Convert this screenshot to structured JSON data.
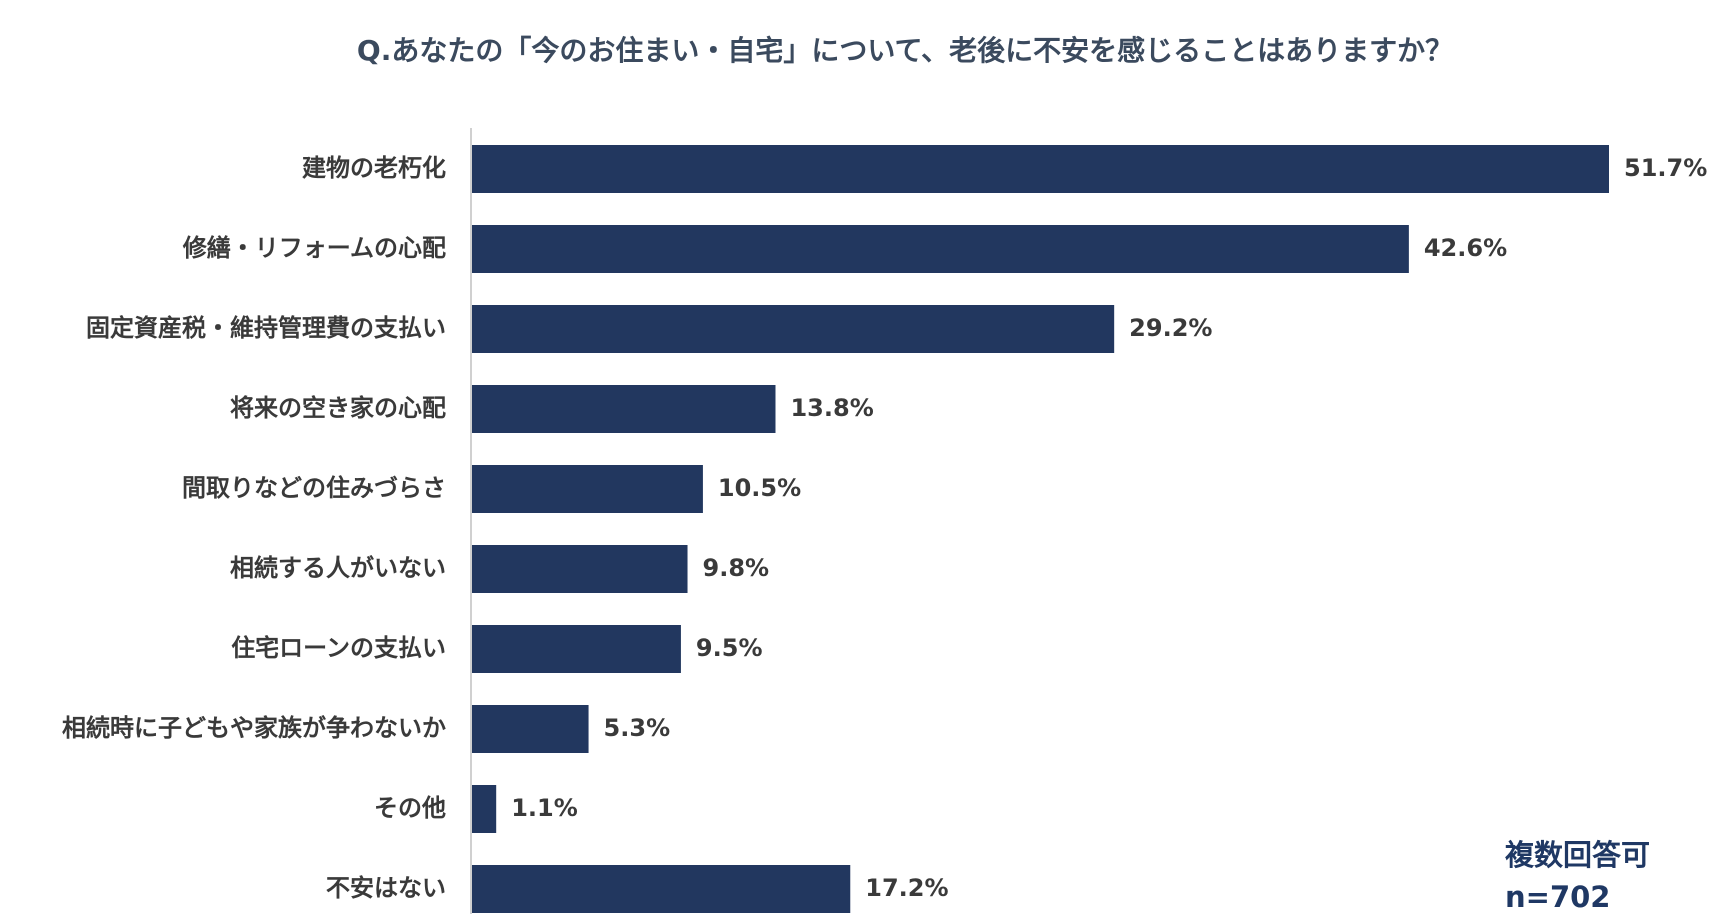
{
  "chart_data": {
    "type": "bar",
    "orientation": "horizontal",
    "title": "Q.あなたの「今のお住まい・自宅」について、老後に不安を感じることはありますか？",
    "categories": [
      "建物の老朽化",
      "修繕・リフォームの心配",
      "固定資産税・維持管理費の支払い",
      "将来の空き家の心配",
      "間取りなどの住みづらさ",
      "相続する人がいない",
      "住宅ローンの支払い",
      "相続時に子どもや家族が争わないか",
      "その他",
      "不安はない"
    ],
    "values": [
      51.7,
      42.6,
      29.2,
      13.8,
      10.5,
      9.8,
      9.5,
      5.3,
      1.1,
      17.2
    ],
    "value_labels": [
      "51.7%",
      "42.6%",
      "29.2%",
      "13.8%",
      "10.5%",
      "9.8%",
      "9.5%",
      "5.3%",
      "1.1%",
      "17.2%"
    ],
    "unit": "%",
    "xlim": [
      0,
      51.7
    ],
    "grid": false,
    "bar_color": "#22375f",
    "axis_color": "#d0d0d0"
  },
  "notes": {
    "multiple_answers": "複数回答可",
    "sample_size": "n=702"
  }
}
